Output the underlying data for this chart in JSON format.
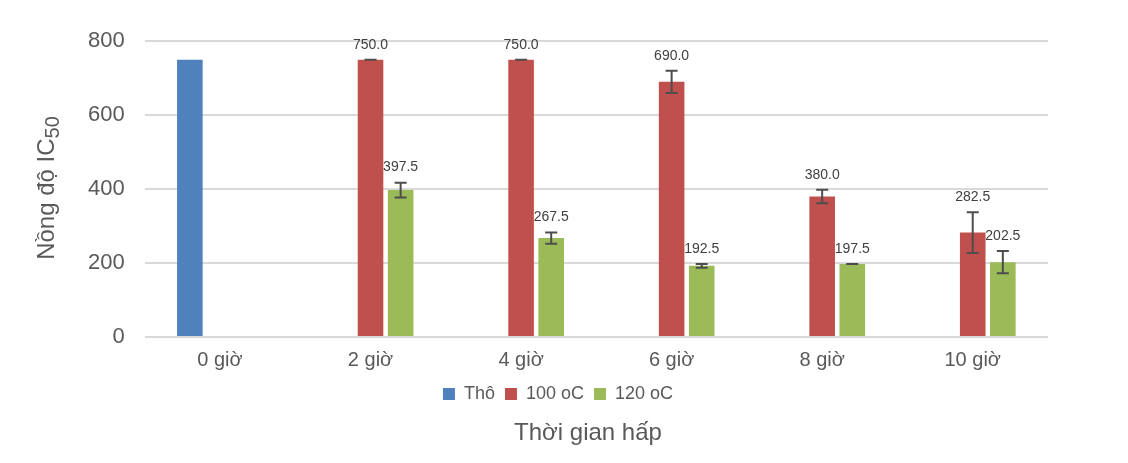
{
  "chart_data": {
    "type": "bar",
    "xlabel": "Thời gian hấp",
    "ylabel": "Nồng độ IC$_{50}$",
    "categories": [
      "0 giờ",
      "2 giờ",
      "4 giờ",
      "6 giờ",
      "8 giờ",
      "10 giờ"
    ],
    "series": [
      {
        "name": "Thô",
        "color": "#4f81bd",
        "values": [
          750,
          null,
          null,
          null,
          null,
          null
        ]
      },
      {
        "name": "100 oC",
        "color": "#c0504d",
        "values": [
          null,
          750,
          750,
          690,
          380,
          282.5
        ],
        "errors": [
          null,
          0,
          0,
          30,
          18,
          55
        ],
        "value_labels": [
          null,
          "750.0",
          "750.0",
          "690.0",
          "380.0",
          "282.5"
        ]
      },
      {
        "name": "120 oC",
        "color": "#9bbb59",
        "values": [
          null,
          397.5,
          267.5,
          192.5,
          197.5,
          202.5
        ],
        "errors": [
          null,
          20,
          15,
          5,
          0,
          30
        ],
        "value_labels": [
          null,
          "397.5",
          "267.5",
          "192.5",
          "197.5",
          "202.5"
        ]
      }
    ],
    "ylim": [
      0,
      800
    ],
    "yticks": [
      0,
      200,
      400,
      600,
      800
    ],
    "grid": "y",
    "legend": "bottom"
  }
}
